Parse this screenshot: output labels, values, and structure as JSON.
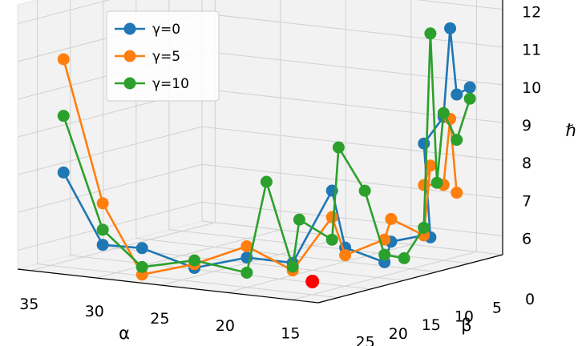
{
  "chart_data": {
    "type": "scatter3d-line",
    "x_label": "α",
    "y_label": "β",
    "z_label": "ℏ",
    "x_ticks": [
      "35",
      "30",
      "25",
      "20",
      "15"
    ],
    "y_ticks": [
      "25",
      "20",
      "15",
      "10",
      "5",
      "0"
    ],
    "z_ticks": [
      "6",
      "7",
      "8",
      "9",
      "10",
      "11",
      "12"
    ],
    "xlim": [
      13,
      36
    ],
    "ylim": [
      0,
      28
    ],
    "zlim": [
      5.5,
      12.5
    ],
    "grid": true,
    "legend_position": "top-left",
    "series": [
      {
        "name": "γ=0",
        "color": "#1f77b4",
        "points": [
          {
            "x": 34,
            "y": 25,
            "z": 8.0
          },
          {
            "x": 31,
            "y": 25,
            "z": 6.2
          },
          {
            "x": 29,
            "y": 23,
            "z": 6.1
          },
          {
            "x": 26,
            "y": 21,
            "z": 5.6
          },
          {
            "x": 23,
            "y": 19,
            "z": 5.9
          },
          {
            "x": 21,
            "y": 16,
            "z": 5.7
          },
          {
            "x": 19,
            "y": 14,
            "z": 7.6
          },
          {
            "x": 19,
            "y": 12,
            "z": 6.0
          },
          {
            "x": 17,
            "y": 10,
            "z": 5.6
          },
          {
            "x": 17,
            "y": 9,
            "z": 6.1
          },
          {
            "x": 15,
            "y": 8,
            "z": 6.3
          },
          {
            "x": 15,
            "y": 7,
            "z": 6.2
          },
          {
            "x": 16,
            "y": 6,
            "z": 8.6
          },
          {
            "x": 15,
            "y": 5,
            "z": 9.3
          },
          {
            "x": 15,
            "y": 4,
            "z": 11.6
          },
          {
            "x": 15,
            "y": 3,
            "z": 9.8
          },
          {
            "x": 15,
            "y": 1,
            "z": 9.9
          }
        ]
      },
      {
        "name": "γ=5",
        "color": "#ff7f0e",
        "points": [
          {
            "x": 34,
            "y": 25,
            "z": 11.0
          },
          {
            "x": 31,
            "y": 25,
            "z": 7.3
          },
          {
            "x": 29,
            "y": 23,
            "z": 5.4
          },
          {
            "x": 26,
            "y": 21,
            "z": 5.7
          },
          {
            "x": 23,
            "y": 19,
            "z": 6.2
          },
          {
            "x": 21,
            "y": 16,
            "z": 5.5
          },
          {
            "x": 19,
            "y": 14,
            "z": 6.9
          },
          {
            "x": 19,
            "y": 12,
            "z": 5.8
          },
          {
            "x": 17,
            "y": 10,
            "z": 6.2
          },
          {
            "x": 17,
            "y": 9,
            "z": 6.7
          },
          {
            "x": 15,
            "y": 8,
            "z": 6.3
          },
          {
            "x": 15,
            "y": 7,
            "z": 8.1
          },
          {
            "x": 16,
            "y": 6,
            "z": 7.5
          },
          {
            "x": 15,
            "y": 5,
            "z": 7.5
          },
          {
            "x": 15,
            "y": 4,
            "z": 9.2
          },
          {
            "x": 15,
            "y": 3,
            "z": 7.2
          }
        ]
      },
      {
        "name": "γ=10",
        "color": "#2ca02c",
        "points": [
          {
            "x": 34,
            "y": 25,
            "z": 9.5
          },
          {
            "x": 31,
            "y": 25,
            "z": 6.6
          },
          {
            "x": 29,
            "y": 23,
            "z": 5.6
          },
          {
            "x": 26,
            "y": 21,
            "z": 5.8
          },
          {
            "x": 23,
            "y": 19,
            "z": 5.5
          },
          {
            "x": 22,
            "y": 18,
            "z": 7.9
          },
          {
            "x": 21,
            "y": 16,
            "z": 5.6
          },
          {
            "x": 21,
            "y": 15,
            "z": 6.8
          },
          {
            "x": 19,
            "y": 14,
            "z": 6.3
          },
          {
            "x": 19,
            "y": 13,
            "z": 8.7
          },
          {
            "x": 18,
            "y": 11,
            "z": 7.5
          },
          {
            "x": 17,
            "y": 10,
            "z": 5.8
          },
          {
            "x": 16,
            "y": 9,
            "z": 5.7
          },
          {
            "x": 15,
            "y": 8,
            "z": 6.5
          },
          {
            "x": 15,
            "y": 7,
            "z": 11.6
          },
          {
            "x": 15,
            "y": 6,
            "z": 7.6
          },
          {
            "x": 15,
            "y": 5,
            "z": 9.4
          },
          {
            "x": 15,
            "y": 3,
            "z": 8.6
          },
          {
            "x": 15,
            "y": 1,
            "z": 9.6
          }
        ]
      }
    ],
    "highlight_point": {
      "color": "#ff0000",
      "x": 20,
      "y": 15,
      "z": 5.2
    }
  }
}
